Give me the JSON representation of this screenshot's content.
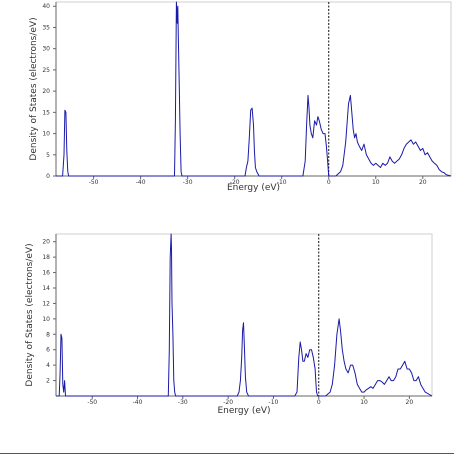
{
  "chart_data": [
    {
      "type": "line",
      "xlabel": "Energy (eV)",
      "ylabel": "Density of States (electrons/eV)",
      "xlim": [
        -58,
        26
      ],
      "ylim": [
        0,
        41
      ],
      "x_ticks": [
        -50,
        -40,
        -30,
        -20,
        -10,
        0,
        10,
        20
      ],
      "x_tick_labels": [
        "-50",
        "-40",
        "-30",
        "-20",
        "-10",
        "0",
        "10",
        "20"
      ],
      "y_ticks": [
        0,
        5,
        10,
        15,
        20,
        25,
        30,
        35,
        40
      ],
      "y_tick_labels": [
        "0",
        "5",
        "10",
        "15",
        "20",
        "25",
        "30",
        "35",
        "40"
      ],
      "fermi_level": 0,
      "line_color": "#1a1aa8",
      "grid": false,
      "series": [
        {
          "x": [
            -58,
            -56.6,
            -56.3,
            -56.1,
            -55.9,
            -55.7,
            -55.5,
            -55.3,
            -55.1,
            -34,
            -32.8,
            -32.6,
            -32.4,
            -32.2,
            -32.1,
            -32.0,
            -31.8,
            -31.6,
            -31.4,
            -31.2,
            -18.5,
            -17.8,
            -17.5,
            -17.2,
            -16.9,
            -16.6,
            -16.3,
            -16.0,
            -15.8,
            -15.6,
            -15.3,
            -14.8,
            -6,
            -5.5,
            -5.0,
            -4.7,
            -4.4,
            -4.2,
            -4.0,
            -3.7,
            -3.4,
            -3.0,
            -2.6,
            -2.3,
            -2.0,
            -1.6,
            -1.2,
            -0.8,
            -0.5,
            -0.2,
            0,
            0.5,
            1.5,
            2.5,
            3.0,
            3.6,
            4.2,
            4.6,
            4.9,
            5.2,
            5.5,
            5.8,
            6.1,
            6.5,
            7,
            7.5,
            8,
            8.5,
            9,
            9.5,
            10,
            10.5,
            11,
            11.5,
            12,
            12.5,
            13,
            13.5,
            14,
            14.5,
            15,
            15.5,
            16,
            16.5,
            17,
            17.5,
            18,
            18.5,
            19,
            19.5,
            20,
            20.5,
            21,
            21.5,
            22,
            22.5,
            23,
            23.5,
            24,
            24.5,
            25,
            26
          ],
          "y": [
            0,
            0,
            5,
            15.5,
            15,
            6,
            1,
            0,
            0,
            0,
            0,
            13,
            41,
            36,
            40,
            33,
            22,
            10,
            1,
            0,
            0,
            0,
            2,
            3.5,
            9,
            15.5,
            16,
            12,
            6,
            2,
            1,
            0,
            0,
            0,
            3.5,
            12,
            19,
            16,
            12,
            10,
            9,
            13,
            12,
            14,
            13,
            11,
            10,
            10,
            7,
            3,
            0,
            0,
            0,
            1,
            2.5,
            8,
            17,
            19,
            15,
            11,
            9,
            10,
            8,
            7,
            6,
            7.5,
            5,
            4,
            3,
            2.5,
            3,
            2.5,
            2,
            3,
            2.5,
            3,
            4.5,
            3.5,
            3,
            3.5,
            4,
            5,
            6.5,
            7.5,
            8,
            8.5,
            7.5,
            8,
            7,
            6,
            6.5,
            5,
            5.5,
            4.5,
            3.5,
            3,
            2.5,
            1.5,
            1,
            0.8,
            0.3,
            0
          ]
        }
      ]
    },
    {
      "type": "line",
      "xlabel": "Energy (eV)",
      "ylabel": "Density of States (electrons/eV)",
      "xlim": [
        -58,
        25
      ],
      "ylim": [
        0,
        21
      ],
      "x_ticks": [
        -50,
        -40,
        -30,
        -20,
        -10,
        0,
        10,
        20
      ],
      "x_tick_labels": [
        "-50",
        "-40",
        "-30",
        "-20",
        "-10",
        "0",
        "10",
        "20"
      ],
      "y_ticks": [
        2,
        4,
        6,
        8,
        10,
        12,
        14,
        16,
        18,
        20
      ],
      "y_tick_labels": [
        "2",
        "4",
        "6",
        "8",
        "10",
        "12",
        "14",
        "16",
        "18",
        "20"
      ],
      "fermi_level": 0,
      "line_color": "#1a1aa8",
      "grid": false,
      "series": [
        {
          "x": [
            -58,
            -57.3,
            -57.1,
            -56.9,
            -56.7,
            -56.5,
            -56.3,
            -56.1,
            -55.9,
            -55.7,
            -34,
            -33.2,
            -33.0,
            -32.8,
            -32.6,
            -32.5,
            -32.4,
            -32.2,
            -32.0,
            -31.8,
            -31.6,
            -18.5,
            -18.0,
            -17.6,
            -17.3,
            -17.0,
            -16.8,
            -16.6,
            -16.4,
            -16.2,
            -15.9,
            -15.5,
            -6,
            -5.3,
            -4.8,
            -4.4,
            -4.1,
            -3.8,
            -3.5,
            -3.2,
            -2.8,
            -2.4,
            -2.0,
            -1.6,
            -1.2,
            -0.8,
            -0.5,
            -0.2,
            0,
            0.5,
            1.5,
            2.5,
            3.0,
            3.5,
            4.0,
            4.5,
            4.8,
            5.2,
            5.6,
            6.0,
            6.5,
            7,
            7.5,
            8,
            8.5,
            9,
            9.5,
            10,
            10.5,
            11,
            11.5,
            12,
            12.5,
            13,
            13.5,
            14,
            14.5,
            15,
            15.5,
            16,
            16.5,
            17,
            17.5,
            18,
            18.5,
            19,
            19.5,
            20,
            20.5,
            21,
            21.5,
            22,
            22.5,
            23,
            23.5,
            25
          ],
          "y": [
            0,
            0,
            3,
            8,
            7.5,
            1.5,
            0.5,
            2,
            0,
            0,
            0,
            0,
            6,
            18,
            21,
            19,
            12,
            8,
            2,
            0.5,
            0,
            0,
            0,
            0.5,
            2,
            5,
            8.5,
            9.5,
            6,
            2.5,
            0.5,
            0,
            0,
            0,
            0.5,
            5,
            7,
            6,
            4.5,
            4.5,
            5.5,
            5,
            6,
            6,
            5,
            3.5,
            0.5,
            0,
            0,
            0,
            0,
            0.5,
            1.5,
            4,
            8,
            10,
            8.5,
            6,
            4.5,
            3.5,
            3,
            4,
            4,
            3,
            1.5,
            1,
            0.5,
            0.5,
            0.8,
            1,
            1.2,
            1,
            1.5,
            2,
            2,
            1.8,
            1.5,
            2,
            2.5,
            2,
            2,
            2.5,
            3.5,
            3.5,
            4,
            4.5,
            3.5,
            3.5,
            3,
            2,
            2,
            2.5,
            1.5,
            1,
            0.5,
            0
          ]
        }
      ]
    }
  ]
}
